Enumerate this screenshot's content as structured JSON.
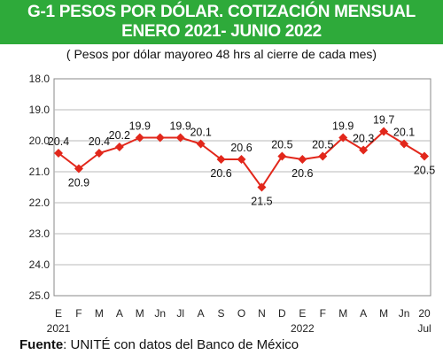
{
  "header": {
    "title_line1": "G-1   PESOS POR DÓLAR. COTIZACIÓN MENSUAL",
    "title_line2": "ENERO 2021- JUNIO 2022",
    "subtitle": "( Pesos por dólar mayoreo 48 hrs al cierre de cada mes)"
  },
  "footer": {
    "source_label": "Fuente",
    "source_text": ": UNITÉ con datos del Banco de México"
  },
  "colors": {
    "header_bg": "#2eaa3a",
    "line": "#e2271b",
    "marker": "#e2271b",
    "grid": "#b9b9b9"
  },
  "chart_data": {
    "type": "line",
    "title": "PESOS POR DÓLAR. COTIZACIÓN MENSUAL ENERO 2021- JUNIO 2022",
    "subtitle": "( Pesos por dólar mayoreo 48 hrs al cierre de cada mes)",
    "categories": [
      "E",
      "F",
      "M",
      "A",
      "M",
      "Jn",
      "Jl",
      "A",
      "S",
      "O",
      "N",
      "D",
      "E",
      "F",
      "M",
      "A",
      "M",
      "Jn",
      "20"
    ],
    "category_sublabels": [
      "2021",
      "",
      "",
      "",
      "",
      "",
      "",
      "",
      "",
      "",
      "",
      "",
      "2022",
      "",
      "",
      "",
      "",
      "",
      "Jul"
    ],
    "values": [
      20.4,
      20.9,
      20.4,
      20.2,
      19.9,
      19.9,
      19.9,
      20.1,
      20.6,
      20.6,
      21.5,
      20.5,
      20.6,
      20.5,
      19.9,
      20.3,
      19.7,
      20.1,
      20.5
    ],
    "data_labels": [
      "20.4",
      "20.9",
      "20.4",
      "20.2",
      "19.9",
      "",
      "19.9",
      "20.1",
      "20.6",
      "20.6",
      "21.5",
      "20.5",
      "20.6",
      "20.5",
      "19.9",
      "20.3",
      "19.7",
      "20.1",
      "20.5"
    ],
    "y_ticks": [
      "18.0",
      "19.0",
      "20.0",
      "21.0",
      "22.0",
      "23.0",
      "24.0",
      "25.0"
    ],
    "ylim": [
      18,
      25
    ],
    "y_inverted": true,
    "grid": true,
    "legend": "none"
  }
}
